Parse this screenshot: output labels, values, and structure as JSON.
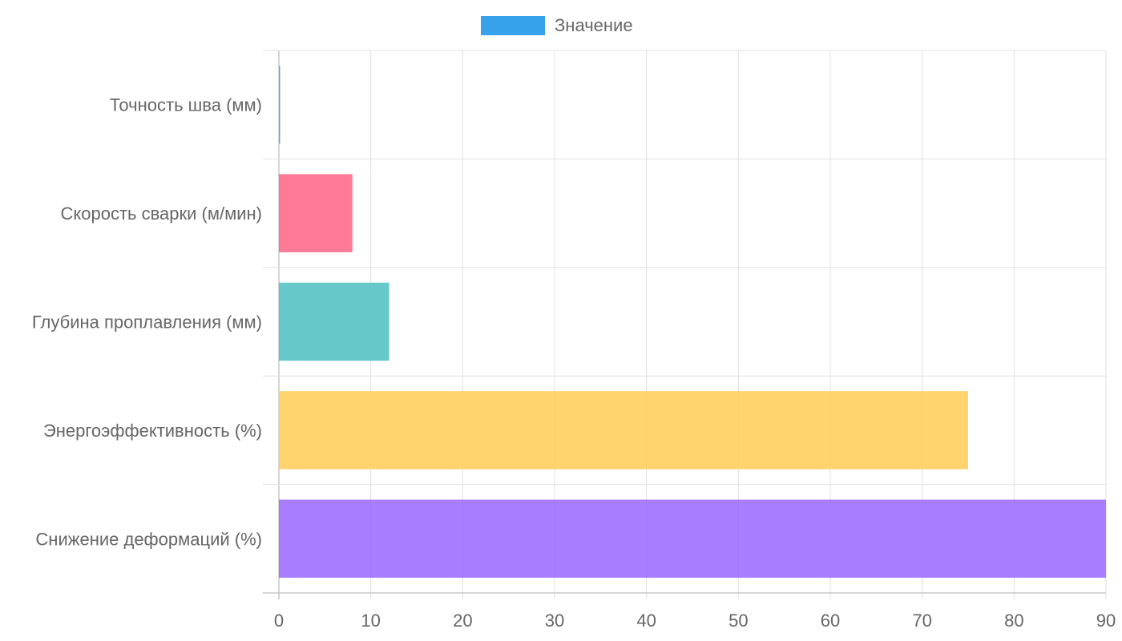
{
  "chart_data": {
    "type": "bar",
    "orientation": "horizontal",
    "categories": [
      "Точность шва (мм)",
      "Скорость сварки (м/мин)",
      "Глубина проплавления (мм)",
      "Энергоэффективность (%)",
      "Снижение деформаций (%)"
    ],
    "series": [
      {
        "name": "Значение",
        "values": [
          0.1,
          8,
          12,
          75,
          90
        ]
      }
    ],
    "bar_colors": [
      "#36a2eb",
      "#ff6384",
      "#4bc0c0",
      "#ffcd56",
      "#9966ff"
    ],
    "legend_color": "#36a2eb",
    "xlim": [
      0,
      90
    ],
    "x_ticks": [
      "0",
      "10",
      "20",
      "30",
      "40",
      "50",
      "60",
      "70",
      "80",
      "90"
    ],
    "grid": true,
    "legend_position": "top"
  }
}
